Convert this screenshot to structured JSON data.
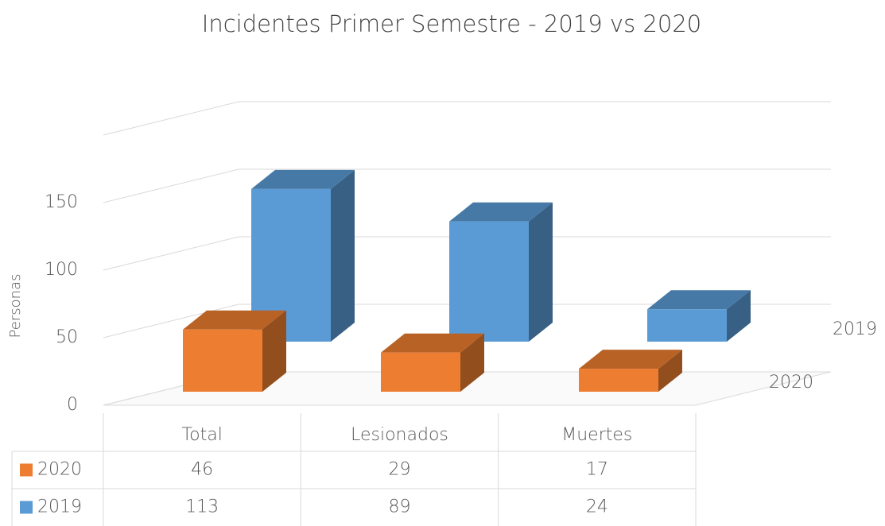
{
  "chart_data": {
    "type": "bar3d",
    "title": "Incidentes Primer Semestre - 2019 vs 2020",
    "ylabel": "Personas",
    "categories": [
      "Total",
      "Lesionados",
      "Muertes"
    ],
    "series": [
      {
        "name": "2020",
        "color": "#ed7d31",
        "values": [
          46,
          29,
          17
        ]
      },
      {
        "name": "2019",
        "color": "#5b9bd5",
        "values": [
          113,
          89,
          24
        ]
      }
    ],
    "ylim": [
      0,
      200
    ],
    "yticks": [
      0,
      50,
      100,
      150
    ],
    "grid": true,
    "data_table": true
  }
}
